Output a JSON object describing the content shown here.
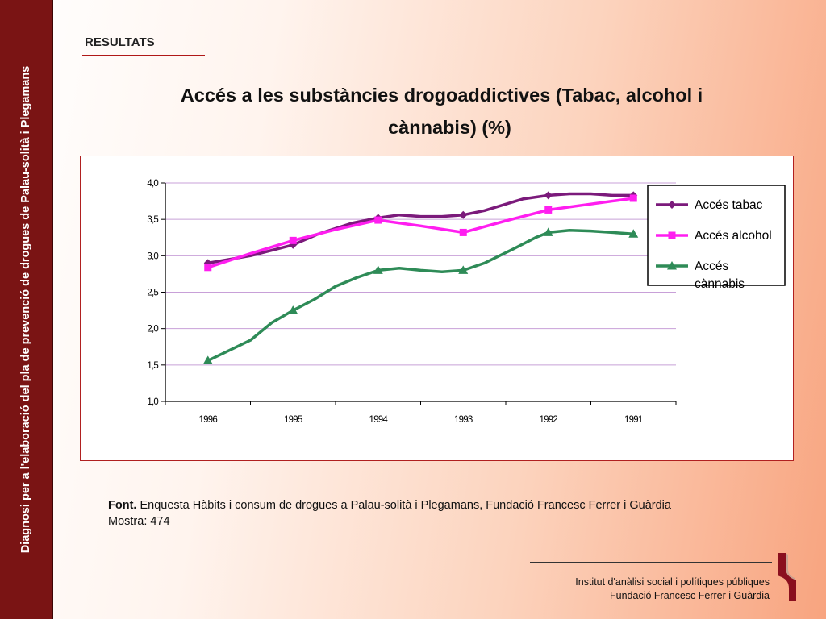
{
  "sidebar": {
    "text": "Diagnosi per a l'elaboració del pla de prevenció de drogues de Palau-solità i Plegamans"
  },
  "header": {
    "section": "RESULTATS",
    "title_line1": "Accés a les substàncies drogoaddictives (Tabac, alcohol i",
    "title_line2": "cànnabis) (%)"
  },
  "colors": {
    "tabac": "#7b1a7b",
    "alcohol": "#ff1ef0",
    "cannabis": "#2e8b57",
    "grid": "#c8a0d8",
    "sidebar": "#7a1414"
  },
  "chart_data": {
    "type": "line",
    "categories": [
      "1996",
      "1995",
      "1994",
      "1993",
      "1992",
      "1991"
    ],
    "ylim": [
      1.0,
      4.0
    ],
    "yticks": [
      "1,0",
      "1,5",
      "2,0",
      "2,5",
      "3,0",
      "3,5",
      "4,0"
    ],
    "grid": true,
    "legend_position": "right",
    "series": [
      {
        "name": "Accés tabac",
        "marker": "diamond",
        "color": "#7b1a7b",
        "values": [
          2.9,
          3.15,
          3.52,
          3.56,
          3.83,
          3.83
        ],
        "path": [
          [
            0,
            2.9
          ],
          [
            0.5,
            3.0
          ],
          [
            1,
            3.15
          ],
          [
            1.3,
            3.3
          ],
          [
            1.7,
            3.45
          ],
          [
            2,
            3.52
          ],
          [
            2.25,
            3.56
          ],
          [
            2.5,
            3.54
          ],
          [
            2.75,
            3.54
          ],
          [
            3,
            3.56
          ],
          [
            3.25,
            3.62
          ],
          [
            3.7,
            3.78
          ],
          [
            4,
            3.83
          ],
          [
            4.25,
            3.85
          ],
          [
            4.5,
            3.85
          ],
          [
            4.75,
            3.83
          ],
          [
            5,
            3.83
          ]
        ]
      },
      {
        "name": "Accés alcohol",
        "marker": "square",
        "color": "#ff1ef0",
        "values": [
          2.84,
          3.21,
          3.49,
          3.32,
          3.63,
          3.79
        ],
        "path": [
          [
            0,
            2.84
          ],
          [
            0.5,
            3.03
          ],
          [
            1,
            3.21
          ],
          [
            1.5,
            3.36
          ],
          [
            2,
            3.49
          ],
          [
            2.5,
            3.41
          ],
          [
            3,
            3.32
          ],
          [
            3.5,
            3.48
          ],
          [
            4,
            3.63
          ],
          [
            4.5,
            3.71
          ],
          [
            5,
            3.79
          ]
        ]
      },
      {
        "name": "Accés cànnabis",
        "marker": "triangle",
        "color": "#2e8b57",
        "values": [
          1.56,
          2.25,
          2.8,
          2.8,
          3.32,
          3.3
        ],
        "path": [
          [
            0,
            1.56
          ],
          [
            0.5,
            1.84
          ],
          [
            0.75,
            2.08
          ],
          [
            1,
            2.25
          ],
          [
            1.25,
            2.4
          ],
          [
            1.5,
            2.58
          ],
          [
            1.75,
            2.7
          ],
          [
            2,
            2.8
          ],
          [
            2.25,
            2.83
          ],
          [
            2.5,
            2.8
          ],
          [
            2.75,
            2.78
          ],
          [
            3,
            2.8
          ],
          [
            3.25,
            2.9
          ],
          [
            3.6,
            3.1
          ],
          [
            3.85,
            3.25
          ],
          [
            4,
            3.32
          ],
          [
            4.25,
            3.35
          ],
          [
            4.5,
            3.34
          ],
          [
            5,
            3.3
          ]
        ]
      }
    ],
    "legend_labels": [
      [
        "Accés tabac"
      ],
      [
        "Accés alcohol"
      ],
      [
        "Accés",
        "cànnabis"
      ]
    ]
  },
  "source": {
    "label": "Font.",
    "text": " Enquesta Hàbits i consum de drogues a Palau-solità i Plegamans, Fundació Francesc Ferrer i Guàrdia",
    "sample": "Mostra: 474"
  },
  "footer": {
    "line1": "Institut d'anàlisi social i polítiques públiques",
    "line2": "Fundació Francesc Ferrer i Guàrdia"
  }
}
